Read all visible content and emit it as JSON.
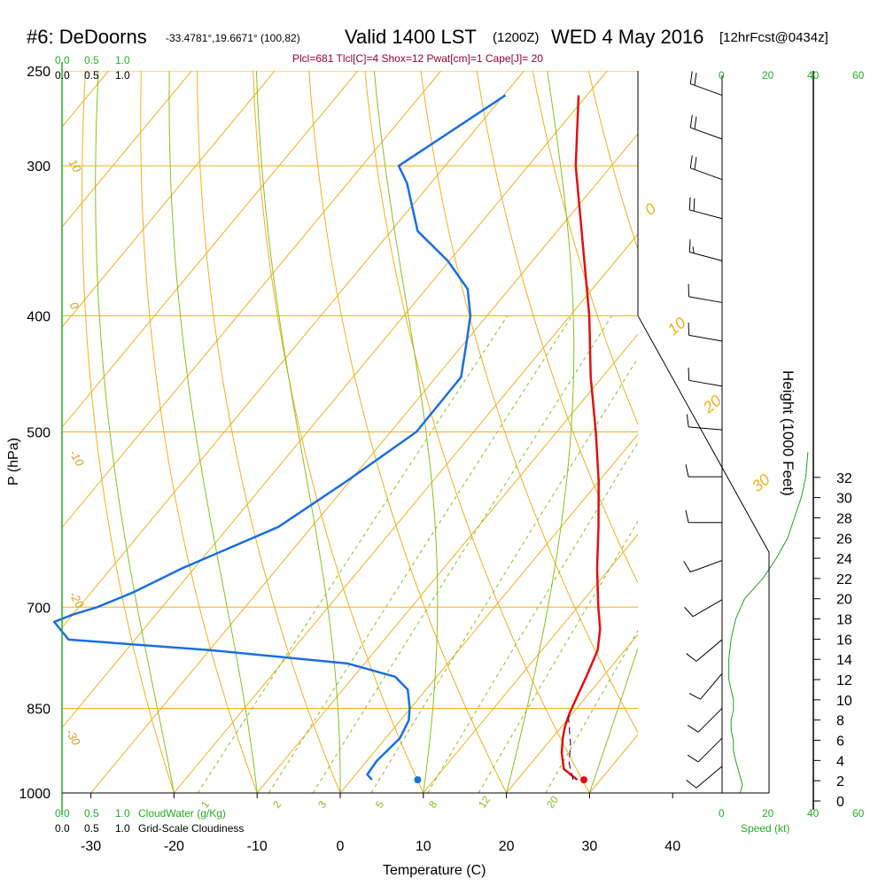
{
  "header": {
    "station": "#6: DeDoorns",
    "coords": "-33.4781°,19.6671° (100,82)",
    "valid": "Valid 1400 LST",
    "utc": "(1200Z)",
    "date": "WED 4 May 2016",
    "forecast": "[12hrFcst@0434z]",
    "indices": "Plcl=681 Tlcl[C]=4 Shox=12 Pwat[cm]=1 Cape[J]= 20"
  },
  "scale_labels": {
    "cloudwater_top": [
      "0.0",
      "0.5",
      "1.0"
    ],
    "cloudiness_top": [
      "0.0",
      "0.5",
      "1.0"
    ],
    "cloudwater_bottom": [
      "0.0",
      "0.5",
      "1.0"
    ],
    "cloudiness_bottom": [
      "0.0",
      "0.5",
      "1.0"
    ],
    "cloudwater_label": "CloudWater (g/Kg)",
    "cloudiness_label": "Grid-Scale Cloudiness",
    "speed_top": [
      "0",
      "20",
      "40",
      "60"
    ],
    "speed_bottom": [
      "0",
      "20",
      "40",
      "60"
    ],
    "speed_label": "Speed (kt)"
  },
  "colors": {
    "temperature": "#e01010",
    "dewpoint": "#1a6ee0",
    "isotherm": "#f0b020",
    "dry_adiabat": "#f0b020",
    "moist_adiabat": "#88c020",
    "mixing_ratio": "#88c020",
    "parcel": "#5a0a4a",
    "speed_line": "#22a022",
    "wind_barb": "#000000"
  },
  "chart_data": {
    "type": "skew-t",
    "title": "#6: DeDoorns Valid 1400 LST (1200Z) WED 4 May 2016",
    "xlabel": "Temperature (C)",
    "ylabel": "P (hPa)",
    "y2label": "Height (1000 Feet)",
    "xlim": [
      -35,
      46
    ],
    "ylim": [
      1000,
      250
    ],
    "y_log": true,
    "pressure_ticks": [
      250,
      300,
      400,
      500,
      700,
      850,
      1000
    ],
    "pressure_tick_labels": [
      "250",
      "300",
      "400",
      "500",
      "700",
      "850",
      "1000"
    ],
    "temp_ticks": [
      -30,
      -20,
      -10,
      0,
      10,
      20,
      30,
      40
    ],
    "temp_tick_labels": [
      "-30",
      "-20",
      "-10",
      "0",
      "10",
      "20",
      "30",
      "40"
    ],
    "height_ticks": [
      0,
      2,
      4,
      6,
      8,
      10,
      12,
      14,
      16,
      18,
      20,
      22,
      24,
      26,
      28,
      30,
      32
    ],
    "height_tick_labels": [
      "0",
      "2",
      "4",
      "6",
      "8",
      "10",
      "12",
      "14",
      "16",
      "18",
      "20",
      "22",
      "24",
      "26",
      "28",
      "30",
      "32"
    ],
    "isotherm_labels": [
      "10",
      "0",
      "-10",
      "-20",
      "-30",
      "0",
      "10",
      "20",
      "30"
    ],
    "mixing_ratio_values": [
      1,
      2,
      3,
      5,
      8,
      12,
      20
    ],
    "mixing_ratio_labels": [
      "1",
      "2",
      "3",
      "5",
      "8",
      "12",
      "20"
    ],
    "temperature": {
      "name": "Temperature",
      "p": [
        975,
        955,
        925,
        900,
        880,
        860,
        850,
        800,
        760,
        730,
        700,
        650,
        600,
        550,
        500,
        450,
        400,
        350,
        300,
        262
      ],
      "t": [
        27.2,
        24.5,
        22.6,
        21.3,
        20.4,
        19.7,
        19.4,
        18.0,
        16.7,
        14.9,
        12.5,
        8.5,
        4.5,
        0.0,
        -5.3,
        -11.4,
        -17.7,
        -25.4,
        -34.3,
        -41.0
      ]
    },
    "dewpoint": {
      "name": "Dewpoint",
      "p": [
        975,
        965,
        940,
        900,
        870,
        850,
        820,
        800,
        780,
        760,
        745,
        720,
        710,
        700,
        680,
        650,
        600,
        550,
        500,
        450,
        420,
        400,
        380,
        360,
        340,
        310,
        300,
        262
      ],
      "td": [
        2.5,
        1.4,
        1.2,
        1.7,
        1.0,
        -0.1,
        -2.2,
        -5.0,
        -12.0,
        -30.0,
        -48.0,
        -51.5,
        -50.0,
        -47.8,
        -44.9,
        -41.5,
        -34.0,
        -30.4,
        -26.9,
        -27.0,
        -29.9,
        -32.0,
        -35.0,
        -40.2,
        -46.8,
        -52.9,
        -55.6,
        -49.8
      ]
    },
    "parcel": {
      "name": "Parcel",
      "p": [
        975,
        945,
        910,
        880,
        860
      ],
      "t": [
        26.7,
        24.6,
        22.8,
        20.9,
        19.6
      ]
    },
    "surface_points": {
      "temperature": 28.0,
      "dewpoint": 8.0,
      "p": 975
    },
    "wind_barbs": [
      {
        "p": 262,
        "speed": 20,
        "dir": 290
      },
      {
        "p": 285,
        "speed": 20,
        "dir": 290
      },
      {
        "p": 308,
        "speed": 20,
        "dir": 290
      },
      {
        "p": 332,
        "speed": 20,
        "dir": 285
      },
      {
        "p": 360,
        "speed": 15,
        "dir": 285
      },
      {
        "p": 390,
        "speed": 10,
        "dir": 280
      },
      {
        "p": 420,
        "speed": 10,
        "dir": 280
      },
      {
        "p": 458,
        "speed": 10,
        "dir": 280
      },
      {
        "p": 498,
        "speed": 10,
        "dir": 275
      },
      {
        "p": 545,
        "speed": 10,
        "dir": 270
      },
      {
        "p": 595,
        "speed": 10,
        "dir": 270
      },
      {
        "p": 640,
        "speed": 10,
        "dir": 250
      },
      {
        "p": 690,
        "speed": 10,
        "dir": 240
      },
      {
        "p": 745,
        "speed": 10,
        "dir": 230
      },
      {
        "p": 795,
        "speed": 10,
        "dir": 220
      },
      {
        "p": 850,
        "speed": 10,
        "dir": 225
      },
      {
        "p": 900,
        "speed": 10,
        "dir": 225
      },
      {
        "p": 950,
        "speed": 10,
        "dir": 230
      }
    ],
    "speed_profile": {
      "name": "Speed (kt)",
      "h": [
        0.8,
        1.6,
        2.4,
        3.2,
        4.0,
        5.0,
        6.0,
        7.0,
        8.0,
        9.0,
        10.0,
        11.0,
        12.0,
        14.0,
        16.0,
        18.0,
        20.0,
        22.0,
        24.0,
        26.0,
        28.0,
        30.0,
        32.0,
        34.5
      ],
      "speed": [
        8,
        9,
        8,
        7,
        6,
        5,
        5,
        4,
        4,
        5,
        5,
        4,
        3,
        3,
        4,
        6,
        10,
        18,
        24,
        29,
        32,
        35,
        37,
        38
      ]
    }
  }
}
